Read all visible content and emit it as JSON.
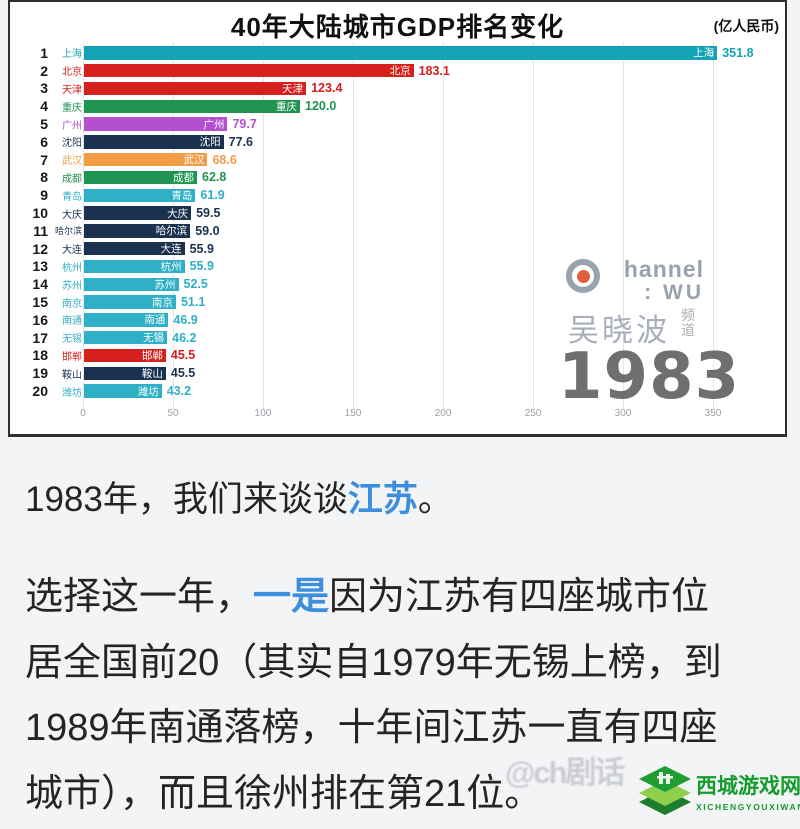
{
  "chart": {
    "title": "40年大陆城市GDP排名变化",
    "unit_label": "(亿人民币)",
    "year": "1983",
    "watermark": {
      "channel_line1": "hannel",
      "channel_line2": ": WU",
      "brand": "吴晓波",
      "brand_suffix": "频道"
    }
  },
  "chart_data": {
    "type": "bar",
    "orientation": "horizontal",
    "title": "40年大陆城市GDP排名变化",
    "unit": "亿人民币",
    "year": 1983,
    "xlabel": "",
    "ylabel": "",
    "xlim": [
      0,
      380
    ],
    "x_ticks": [
      0,
      50,
      100,
      150,
      200,
      250,
      300,
      350
    ],
    "grid": true,
    "legend": false,
    "rows": [
      {
        "rank": 1,
        "city": "上海",
        "value": 351.8,
        "color": "#14a3b4"
      },
      {
        "rank": 2,
        "city": "北京",
        "value": 183.1,
        "color": "#d5201d"
      },
      {
        "rank": 3,
        "city": "天津",
        "value": 123.4,
        "color": "#d5201d"
      },
      {
        "rank": 4,
        "city": "重庆",
        "value": 120.0,
        "color": "#1f9350"
      },
      {
        "rank": 5,
        "city": "广州",
        "value": 79.7,
        "color": "#b44fd0"
      },
      {
        "rank": 6,
        "city": "沈阳",
        "value": 77.6,
        "color": "#1b3150"
      },
      {
        "rank": 7,
        "city": "武汉",
        "value": 68.6,
        "color": "#f29c45"
      },
      {
        "rank": 8,
        "city": "成都",
        "value": 62.8,
        "color": "#1f9350"
      },
      {
        "rank": 9,
        "city": "青岛",
        "value": 61.9,
        "color": "#2fb0c6"
      },
      {
        "rank": 10,
        "city": "大庆",
        "value": 59.5,
        "color": "#1b3150"
      },
      {
        "rank": 11,
        "city": "哈尔滨",
        "value": 59.0,
        "color": "#1b3150"
      },
      {
        "rank": 12,
        "city": "大连",
        "value": 55.9,
        "color": "#1b3150"
      },
      {
        "rank": 13,
        "city": "杭州",
        "value": 55.9,
        "color": "#2fb0c6"
      },
      {
        "rank": 14,
        "city": "苏州",
        "value": 52.5,
        "color": "#2fb0c6"
      },
      {
        "rank": 15,
        "city": "南京",
        "value": 51.1,
        "color": "#2fb0c6"
      },
      {
        "rank": 16,
        "city": "南通",
        "value": 46.9,
        "color": "#2fb0c6"
      },
      {
        "rank": 17,
        "city": "无锡",
        "value": 46.2,
        "color": "#2fb0c6"
      },
      {
        "rank": 18,
        "city": "邯郸",
        "value": 45.5,
        "color": "#d5201d"
      },
      {
        "rank": 19,
        "city": "鞍山",
        "value": 45.5,
        "color": "#1b3150"
      },
      {
        "rank": 20,
        "city": "潍坊",
        "value": 43.2,
        "color": "#2fb0c6"
      }
    ]
  },
  "article": {
    "para1_segments": [
      {
        "t": "1983年，我们来谈谈"
      },
      {
        "t": "江苏",
        "hl": true
      },
      {
        "t": "。"
      }
    ],
    "para2_lines": [
      [
        {
          "t": "选择这一年，"
        },
        {
          "t": "一是",
          "hl": true
        },
        {
          "t": "因为江苏有四座城市位"
        }
      ],
      [
        {
          "t": "居全国前20（其实自1979年无锡上榜，到"
        }
      ],
      [
        {
          "t": "1989年南通落榜，十年间江苏一直有四座"
        }
      ],
      [
        {
          "t": "城市），而且徐州排在第21位。"
        }
      ]
    ],
    "highlight_color": "#3d8fdd"
  },
  "footer": {
    "faint_watermark": "@ch剧话",
    "site_name": "西城游戏网",
    "site_name_latin": "XICHENGYOUXIWANG",
    "site_color": "#139b2c"
  }
}
